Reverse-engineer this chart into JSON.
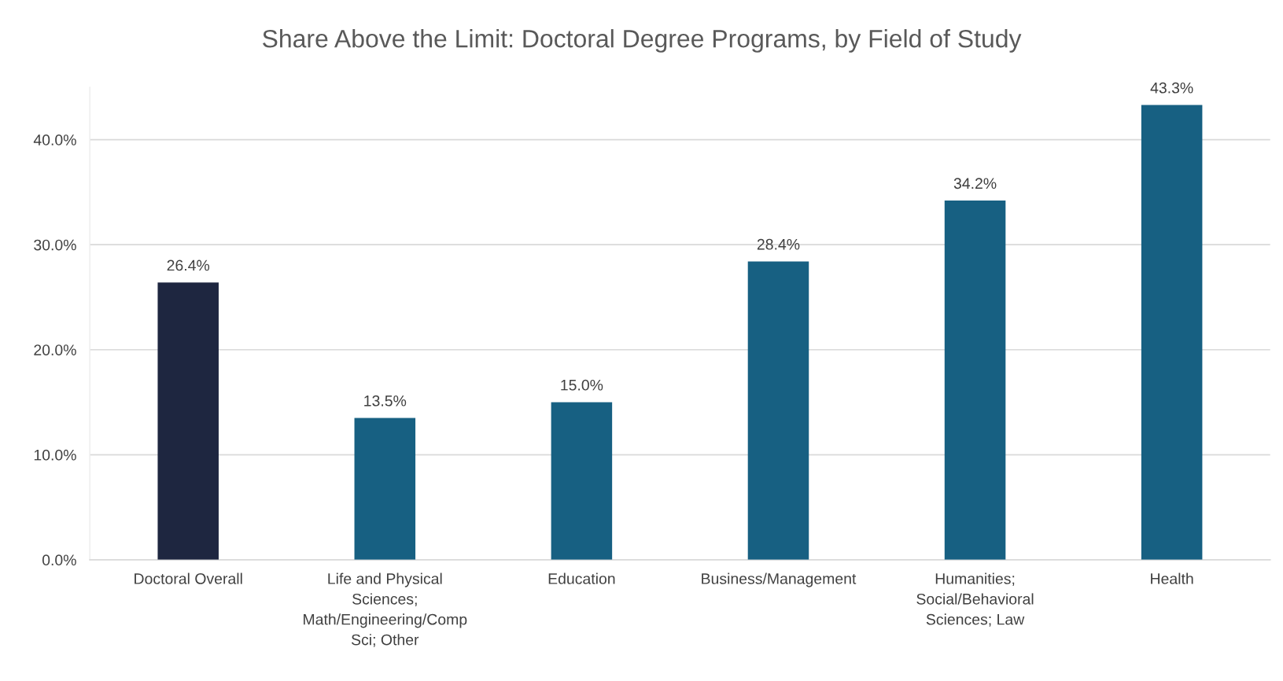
{
  "chart_data": {
    "type": "bar",
    "title": "Share Above the Limit: Doctoral Degree Programs, by Field of Study",
    "categories": [
      "Doctoral Overall",
      "Life and Physical\nSciences;\nMath/Engineering/Comp\nSci; Other",
      "Education",
      "Business/Management",
      "Humanities;\nSocial/Behavioral\nSciences; Law",
      "Health"
    ],
    "values": [
      26.4,
      13.5,
      15.0,
      28.4,
      34.2,
      43.3
    ],
    "colors": [
      "#1e2640",
      "#176082",
      "#176082",
      "#176082",
      "#176082",
      "#176082"
    ],
    "value_labels": [
      "26.4%",
      "13.5%",
      "15.0%",
      "28.4%",
      "34.2%",
      "43.3%"
    ],
    "ylim": [
      0,
      45
    ],
    "yticks": [
      {
        "value": 0,
        "label": "0.0%"
      },
      {
        "value": 10,
        "label": "10.0%"
      },
      {
        "value": 20,
        "label": "20.0%"
      },
      {
        "value": 30,
        "label": "30.0%"
      },
      {
        "value": 40,
        "label": "40.0%"
      }
    ],
    "grid": "y",
    "legend": false
  }
}
